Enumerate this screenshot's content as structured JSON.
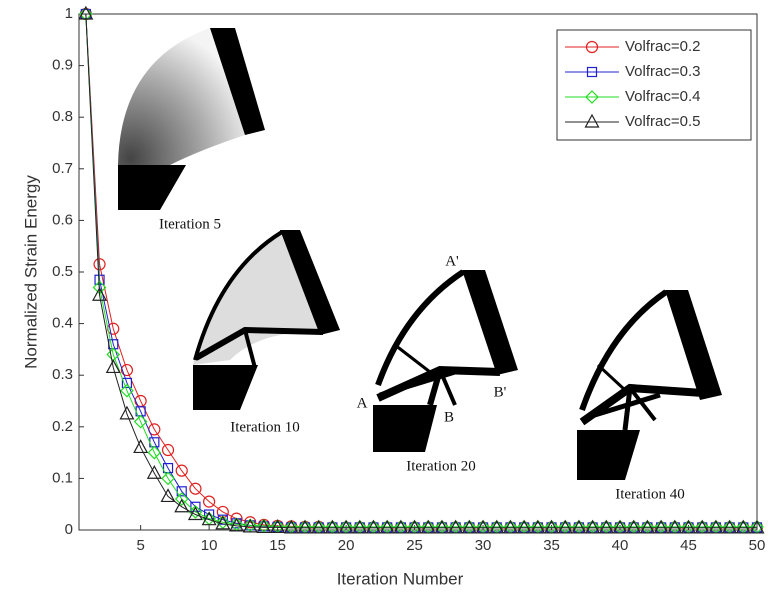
{
  "chart_data": {
    "type": "line",
    "x_label": "Iteration Number",
    "y_label": "Normalized Strain Energy",
    "x": [
      1,
      2,
      3,
      4,
      5,
      6,
      7,
      8,
      9,
      10,
      11,
      12,
      13,
      14,
      15,
      16,
      17,
      18,
      19,
      20,
      21,
      22,
      23,
      24,
      25,
      26,
      27,
      28,
      29,
      30,
      31,
      32,
      33,
      34,
      35,
      36,
      37,
      38,
      39,
      40,
      41,
      42,
      43,
      44,
      45,
      46,
      47,
      48,
      49,
      50
    ],
    "series": [
      {
        "name": "Volfrac=0.2",
        "color": "#e02020",
        "marker": "circle",
        "values": [
          1,
          0.515,
          0.39,
          0.31,
          0.25,
          0.195,
          0.155,
          0.115,
          0.08,
          0.055,
          0.035,
          0.022,
          0.015,
          0.01,
          0.008,
          0.007,
          0.006,
          0.006,
          0.005,
          0.005,
          0.005,
          0.005,
          0.005,
          0.005,
          0.005,
          0.005,
          0.005,
          0.005,
          0.005,
          0.005,
          0.005,
          0.005,
          0.005,
          0.005,
          0.005,
          0.005,
          0.005,
          0.005,
          0.005,
          0.005,
          0.005,
          0.005,
          0.005,
          0.005,
          0.005,
          0.005,
          0.005,
          0.005,
          0.005,
          0.005
        ]
      },
      {
        "name": "Volfrac=0.3",
        "color": "#2020d0",
        "marker": "square",
        "values": [
          1,
          0.485,
          0.36,
          0.285,
          0.23,
          0.17,
          0.12,
          0.075,
          0.045,
          0.03,
          0.02,
          0.013,
          0.009,
          0.007,
          0.006,
          0.005,
          0.005,
          0.005,
          0.005,
          0.005,
          0.005,
          0.005,
          0.005,
          0.005,
          0.005,
          0.005,
          0.005,
          0.005,
          0.005,
          0.005,
          0.005,
          0.005,
          0.005,
          0.005,
          0.005,
          0.005,
          0.005,
          0.005,
          0.005,
          0.005,
          0.005,
          0.005,
          0.005,
          0.005,
          0.005,
          0.005,
          0.005,
          0.005,
          0.005,
          0.005
        ]
      },
      {
        "name": "Volfrac=0.4",
        "color": "#22dd22",
        "marker": "diamond",
        "values": [
          1,
          0.47,
          0.34,
          0.27,
          0.21,
          0.15,
          0.1,
          0.06,
          0.035,
          0.022,
          0.015,
          0.011,
          0.009,
          0.008,
          0.007,
          0.006,
          0.006,
          0.006,
          0.006,
          0.006,
          0.006,
          0.006,
          0.006,
          0.006,
          0.006,
          0.006,
          0.006,
          0.006,
          0.006,
          0.006,
          0.006,
          0.006,
          0.006,
          0.006,
          0.006,
          0.006,
          0.006,
          0.006,
          0.006,
          0.006,
          0.006,
          0.006,
          0.006,
          0.006,
          0.006,
          0.006,
          0.006,
          0.006,
          0.006,
          0.006
        ]
      },
      {
        "name": "Volfrac=0.5",
        "color": "#222222",
        "marker": "triangle",
        "values": [
          1,
          0.455,
          0.315,
          0.225,
          0.16,
          0.11,
          0.065,
          0.045,
          0.03,
          0.02,
          0.012,
          0.008,
          0.006,
          0.005,
          0.005,
          0.004,
          0.004,
          0.004,
          0.004,
          0.004,
          0.004,
          0.004,
          0.004,
          0.004,
          0.004,
          0.004,
          0.004,
          0.004,
          0.004,
          0.004,
          0.004,
          0.004,
          0.004,
          0.004,
          0.004,
          0.004,
          0.004,
          0.004,
          0.004,
          0.004,
          0.004,
          0.004,
          0.004,
          0.004,
          0.004,
          0.004,
          0.004,
          0.004,
          0.004,
          0.004
        ]
      }
    ],
    "xlim": [
      0.5,
      50
    ],
    "xticks": [
      5,
      10,
      15,
      20,
      25,
      30,
      35,
      40,
      45,
      50
    ],
    "ylim": [
      0,
      1
    ],
    "yticks": [
      0,
      0.1,
      0.2,
      0.3,
      0.4,
      0.5,
      0.6,
      0.7,
      0.8,
      0.9,
      1
    ],
    "legend": "upper right",
    "annotations": [
      "Iteration 5",
      "Iteration 10",
      "Iteration 20",
      "Iteration 40",
      "A'",
      "A",
      "B",
      "B'"
    ]
  }
}
